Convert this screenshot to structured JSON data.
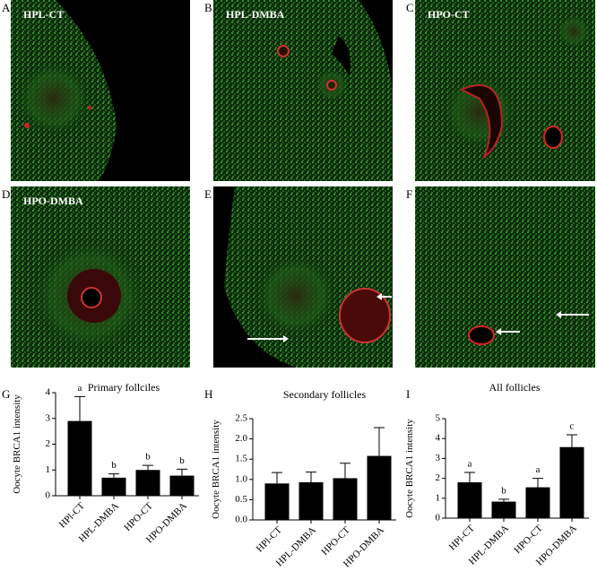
{
  "panels": [
    {
      "letter": "A",
      "label": "HPL-CT"
    },
    {
      "letter": "B",
      "label": "HPL-DMBA"
    },
    {
      "letter": "C",
      "label": "HPO-CT"
    },
    {
      "letter": "D",
      "label": "HPO-DMBA"
    },
    {
      "letter": "E"
    },
    {
      "letter": "F"
    }
  ],
  "chart_data": [
    {
      "type": "bar",
      "panel": "G",
      "title": "Primary follciles",
      "y_label": "Oocyte BRCA1 intensity",
      "categories": [
        "HPl-CT",
        "HPL-DMBA",
        "HPO-CT",
        "HPO-DMBA"
      ],
      "series": [
        {
          "color": "#000000",
          "values": [
            2.9,
            0.7,
            1.0,
            0.78
          ],
          "errors": [
            0.95,
            0.15,
            0.18,
            0.25
          ],
          "letters": [
            "a",
            "b",
            "b",
            "b"
          ]
        }
      ],
      "ylim": [
        0,
        4
      ],
      "yticks": [
        0,
        1,
        2,
        3,
        4
      ]
    },
    {
      "type": "bar",
      "panel": "H",
      "title": "Secondary follicles",
      "y_label": "Oocyte BRCA1 intensity",
      "categories": [
        "HPl-CT",
        "HPL-DMBA",
        "HPO-CT",
        "HPO-DMBA"
      ],
      "series": [
        {
          "color": "#000000",
          "values": [
            0.9,
            0.93,
            1.03,
            1.58
          ],
          "errors": [
            0.27,
            0.25,
            0.37,
            0.7
          ]
        }
      ],
      "ylim": [
        0,
        2.5
      ],
      "yticks": [
        {
          "value": 0,
          "label": "0.0"
        },
        0.5,
        {
          "value": 1,
          "label": "1.0"
        },
        1.5,
        {
          "value": 2,
          "label": "2.0"
        },
        2.5
      ]
    },
    {
      "type": "bar",
      "panel": "I",
      "title": "All follicles",
      "y_label": "Oocyte BRCA1 intensity",
      "categories": [
        "HPl-CT",
        "HPL-DMBA",
        "HPO-CT",
        "HPO-DMBA"
      ],
      "series": [
        {
          "color": "#000000",
          "values": [
            1.8,
            0.83,
            1.55,
            3.57
          ],
          "errors": [
            0.5,
            0.12,
            0.45,
            0.62
          ],
          "letters": [
            "a",
            "b",
            "a",
            "c"
          ]
        }
      ],
      "ylim": [
        0,
        5
      ],
      "yticks": [
        0,
        1,
        2,
        3,
        4,
        5
      ]
    }
  ]
}
